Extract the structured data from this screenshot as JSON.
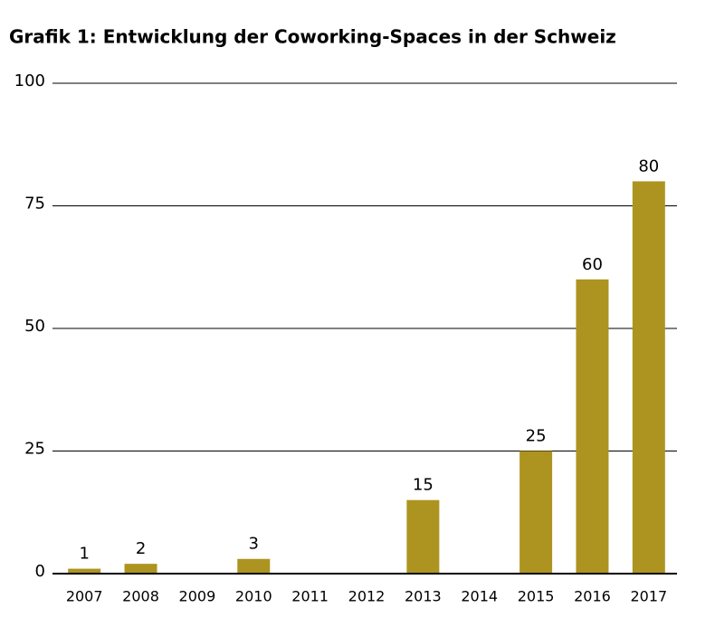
{
  "chart_data": {
    "type": "bar",
    "title": "Grafik 1: Entwicklung der Coworking-Spaces in der Schweiz",
    "categories": [
      "2007",
      "2008",
      "2009",
      "2010",
      "2011",
      "2012",
      "2013",
      "2014",
      "2015",
      "2016",
      "2017"
    ],
    "values": [
      1,
      2,
      null,
      3,
      null,
      null,
      15,
      null,
      25,
      60,
      80
    ],
    "color": "#ad9420",
    "ylim": [
      0,
      100
    ],
    "yticks": [
      0,
      25,
      50,
      75,
      100
    ],
    "grid": true
  }
}
